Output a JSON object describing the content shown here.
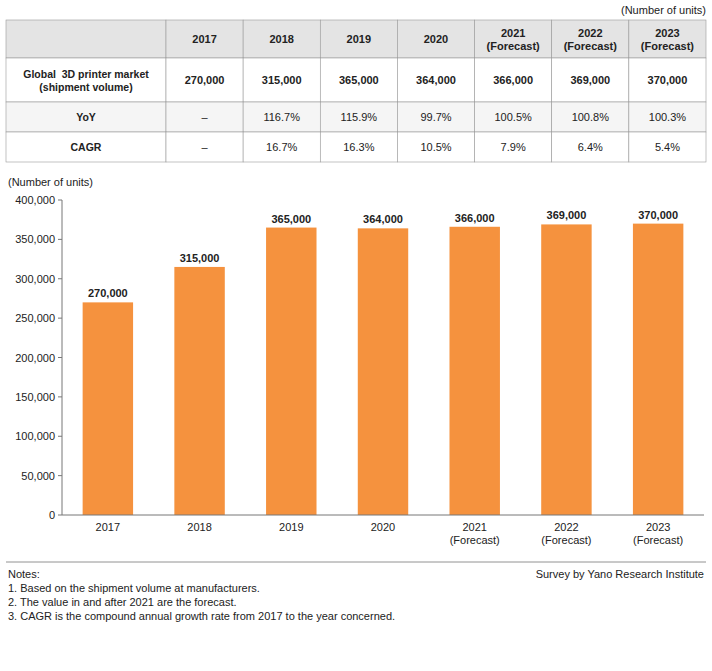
{
  "chart_data": {
    "type": "bar",
    "categories": [
      "2017",
      "2018",
      "2019",
      "2020",
      "2021\n(Forecast)",
      "2022\n(Forecast)",
      "2023\n(Forecast)"
    ],
    "values": [
      270000,
      315000,
      365000,
      364000,
      366000,
      369000,
      370000
    ],
    "value_labels": [
      "270,000",
      "315,000",
      "365,000",
      "364,000",
      "366,000",
      "369,000",
      "370,000"
    ],
    "data_labels": true,
    "color": "#F5923E",
    "ylim": [
      0,
      400000
    ],
    "yticks": [
      0,
      {
        "value": 50000,
        "label": "50,000"
      },
      {
        "value": 100000,
        "label": "100,000"
      },
      {
        "value": 150000,
        "label": "150,000"
      },
      {
        "value": 200000,
        "label": "200,000"
      },
      {
        "value": 250000,
        "label": "250,000"
      },
      {
        "value": 300000,
        "label": "300,000"
      },
      {
        "value": 350000,
        "label": "350,000"
      },
      {
        "value": 400000,
        "label": "400,000"
      }
    ],
    "grid": false,
    "y_label": "(Number of units)",
    "table": {
      "unit_label": "(Number of units)",
      "columns": [
        "2017",
        "2018",
        "2019",
        "2020",
        "2021\n(Forecast)",
        "2022\n(Forecast)",
        "2023\n(Forecast)"
      ],
      "rows": [
        {
          "label": "Global  3D printer market\n(shipment volume)",
          "cells": [
            "270,000",
            "315,000",
            "365,000",
            "364,000",
            "366,000",
            "369,000",
            "370,000"
          ]
        },
        {
          "label": "YoY",
          "cells": [
            "–",
            "116.7%",
            "115.9%",
            "99.7%",
            "100.5%",
            "100.8%",
            "100.3%"
          ]
        },
        {
          "label": "CAGR",
          "cells": [
            "–",
            "16.7%",
            "16.3%",
            "10.5%",
            "7.9%",
            "6.4%",
            "5.4%"
          ]
        }
      ]
    },
    "notes": [
      "Notes:",
      "1. Based on the shipment volume at manufacturers.",
      "2. The value in and after 2021 are the forecast.",
      "3. CAGR is the compound annual growth rate from 2017 to the year concerned."
    ],
    "source": "Survey by Yano Research Institute"
  }
}
